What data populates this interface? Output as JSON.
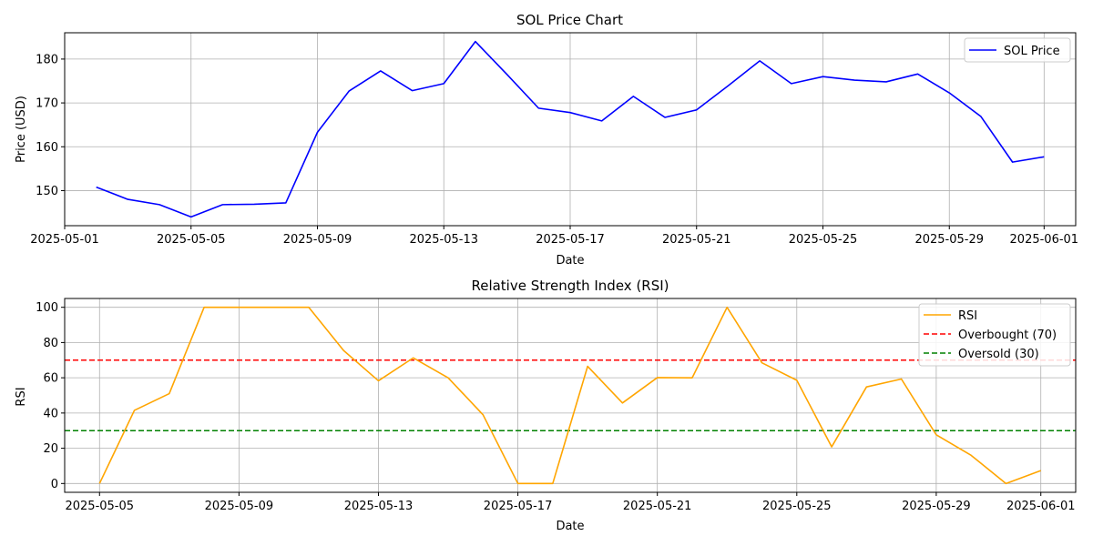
{
  "chart_data": [
    {
      "type": "line",
      "title": "SOL Price Chart",
      "xlabel": "Date",
      "ylabel": "Price (USD)",
      "grid": true,
      "legend_position": "upper right",
      "xlim": [
        "2025-05-01",
        "2025-06-02"
      ],
      "ylim": [
        142,
        186
      ],
      "x_ticks": [
        "2025-05-01",
        "2025-05-05",
        "2025-05-09",
        "2025-05-13",
        "2025-05-17",
        "2025-05-21",
        "2025-05-25",
        "2025-05-29",
        "2025-06-01"
      ],
      "y_ticks": [
        150,
        160,
        170,
        180
      ],
      "series": [
        {
          "name": "SOL Price",
          "color": "#0000ff",
          "points": [
            [
              "2025-05-02",
              150.8
            ],
            [
              "2025-05-03",
              148.0
            ],
            [
              "2025-05-04",
              146.8
            ],
            [
              "2025-05-05",
              144.0
            ],
            [
              "2025-05-06",
              146.8
            ],
            [
              "2025-05-07",
              146.9
            ],
            [
              "2025-05-08",
              147.2
            ],
            [
              "2025-05-09",
              163.3
            ],
            [
              "2025-05-10",
              172.7
            ],
            [
              "2025-05-11",
              177.3
            ],
            [
              "2025-05-12",
              172.8
            ],
            [
              "2025-05-13",
              174.4
            ],
            [
              "2025-05-14",
              184.0
            ],
            [
              "2025-05-15",
              176.5
            ],
            [
              "2025-05-16",
              168.8
            ],
            [
              "2025-05-17",
              167.8
            ],
            [
              "2025-05-18",
              165.9
            ],
            [
              "2025-05-19",
              171.5
            ],
            [
              "2025-05-20",
              166.7
            ],
            [
              "2025-05-21",
              168.4
            ],
            [
              "2025-05-22",
              173.9
            ],
            [
              "2025-05-23",
              179.6
            ],
            [
              "2025-05-24",
              174.4
            ],
            [
              "2025-05-25",
              176.0
            ],
            [
              "2025-05-26",
              175.2
            ],
            [
              "2025-05-27",
              174.8
            ],
            [
              "2025-05-28",
              176.6
            ],
            [
              "2025-05-29",
              172.3
            ],
            [
              "2025-05-30",
              166.9
            ],
            [
              "2025-05-31",
              156.5
            ],
            [
              "2025-06-01",
              157.7
            ]
          ]
        }
      ]
    },
    {
      "type": "line",
      "title": "Relative Strength Index (RSI)",
      "xlabel": "Date",
      "ylabel": "RSI",
      "grid": true,
      "legend_position": "upper right",
      "xlim": [
        "2025-05-04",
        "2025-06-02"
      ],
      "ylim": [
        -5,
        105
      ],
      "x_ticks": [
        "2025-05-05",
        "2025-05-09",
        "2025-05-13",
        "2025-05-17",
        "2025-05-21",
        "2025-05-25",
        "2025-05-29",
        "2025-06-01"
      ],
      "y_ticks": [
        0,
        20,
        40,
        60,
        80,
        100
      ],
      "series": [
        {
          "name": "RSI",
          "color": "#ffa500",
          "points": [
            [
              "2025-05-05",
              0
            ],
            [
              "2025-05-06",
              41.5
            ],
            [
              "2025-05-07",
              51.0
            ],
            [
              "2025-05-08",
              100
            ],
            [
              "2025-05-09",
              100
            ],
            [
              "2025-05-10",
              100
            ],
            [
              "2025-05-11",
              100
            ],
            [
              "2025-05-12",
              75.5
            ],
            [
              "2025-05-13",
              58.3
            ],
            [
              "2025-05-14",
              71.3
            ],
            [
              "2025-05-15",
              60.0
            ],
            [
              "2025-05-16",
              39.0
            ],
            [
              "2025-05-17",
              0
            ],
            [
              "2025-05-18",
              0
            ],
            [
              "2025-05-19",
              66.5
            ],
            [
              "2025-05-20",
              45.7
            ],
            [
              "2025-05-21",
              60.1
            ],
            [
              "2025-05-22",
              60.0
            ],
            [
              "2025-05-23",
              100
            ],
            [
              "2025-05-24",
              68.5
            ],
            [
              "2025-05-25",
              58.6
            ],
            [
              "2025-05-26",
              20.8
            ],
            [
              "2025-05-27",
              54.8
            ],
            [
              "2025-05-28",
              59.3
            ],
            [
              "2025-05-29",
              27.6
            ],
            [
              "2025-05-30",
              16.0
            ],
            [
              "2025-05-31",
              0
            ],
            [
              "2025-06-01",
              7.3
            ]
          ]
        }
      ],
      "reference_lines": [
        {
          "name": "Overbought (70)",
          "y": 70,
          "color": "#ff0000",
          "style": "dashed"
        },
        {
          "name": "Oversold (30)",
          "y": 30,
          "color": "#008000",
          "style": "dashed"
        }
      ]
    }
  ]
}
